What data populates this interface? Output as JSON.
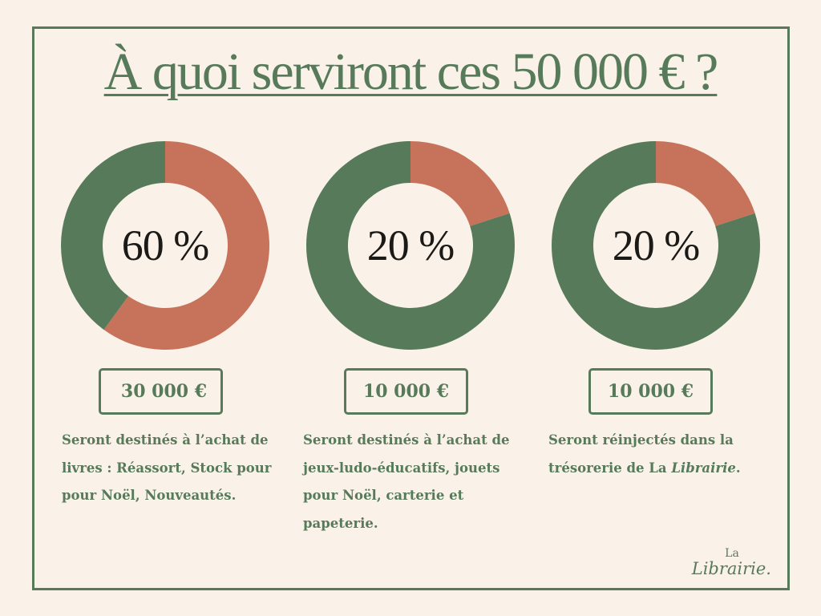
{
  "title": "À quoi serviront ces 50 000 € ?",
  "colors": {
    "background": "#faf2e8",
    "green": "#577a5a",
    "terracotta": "#c7735b",
    "text_dark": "#1c1a17"
  },
  "chart_data": [
    {
      "type": "pie",
      "style": "donut",
      "slices": [
        {
          "value": 60,
          "color": "#c7735b"
        },
        {
          "value": 40,
          "color": "#577a5a"
        }
      ],
      "center_label": "60 %"
    },
    {
      "type": "pie",
      "style": "donut",
      "slices": [
        {
          "value": 20,
          "color": "#c7735b"
        },
        {
          "value": 80,
          "color": "#577a5a"
        }
      ],
      "center_label": "20 %"
    },
    {
      "type": "pie",
      "style": "donut",
      "slices": [
        {
          "value": 20,
          "color": "#c7735b"
        },
        {
          "value": 80,
          "color": "#577a5a"
        }
      ],
      "center_label": "20 %"
    }
  ],
  "cards": [
    {
      "amount": "30 000 €",
      "description": "Seront destinés à l’achat de livres : Réassort, Stock pour pour Noël, Nouveautés."
    },
    {
      "amount": "10 000 €",
      "description": "Seront destinés à l’achat de jeux-ludo-éducatifs, jouets pour Noël, carterie et papeterie."
    },
    {
      "amount": "10 000 €",
      "description_prefix": "Seront réinjectés dans la trésorerie de La ",
      "description_emphasis": "Librairie",
      "description_suffix": "."
    }
  ],
  "logo": {
    "line1": "La",
    "line2": "Librairie."
  }
}
